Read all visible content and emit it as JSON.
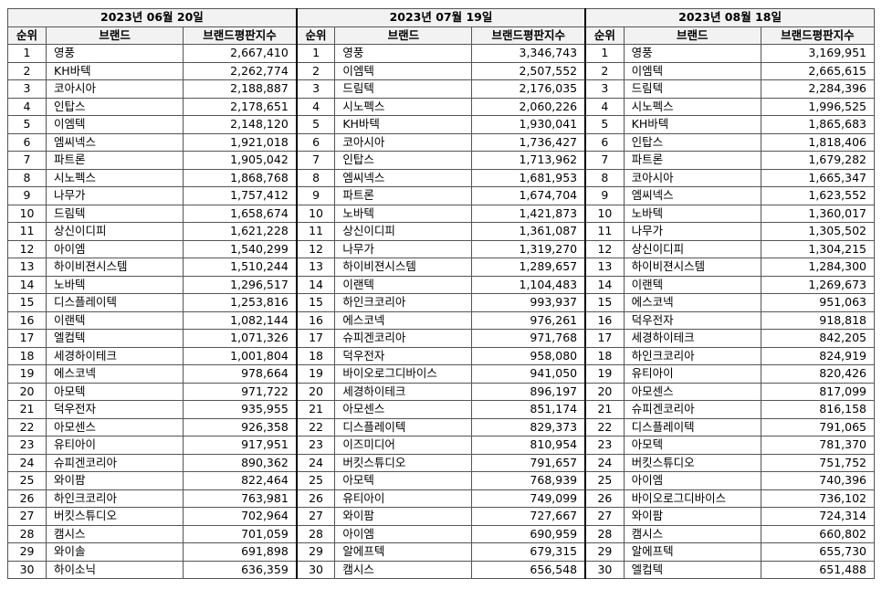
{
  "headers": {
    "rank": "순위",
    "brand": "브랜드",
    "index": "브랜드평판지수"
  },
  "periods": [
    {
      "date": "2023년 06월 20일",
      "rows": [
        [
          "1",
          "영풍",
          "2,667,410"
        ],
        [
          "2",
          "KH바텍",
          "2,262,774"
        ],
        [
          "3",
          "코아시아",
          "2,188,887"
        ],
        [
          "4",
          "인탑스",
          "2,178,651"
        ],
        [
          "5",
          "이엠텍",
          "2,148,120"
        ],
        [
          "6",
          "엠씨넥스",
          "1,921,018"
        ],
        [
          "7",
          "파트론",
          "1,905,042"
        ],
        [
          "8",
          "시노펙스",
          "1,868,768"
        ],
        [
          "9",
          "나무가",
          "1,757,412"
        ],
        [
          "10",
          "드림텍",
          "1,658,674"
        ],
        [
          "11",
          "상신이디피",
          "1,621,228"
        ],
        [
          "12",
          "아이엠",
          "1,540,299"
        ],
        [
          "13",
          "하이비젼시스템",
          "1,510,244"
        ],
        [
          "14",
          "노바텍",
          "1,296,517"
        ],
        [
          "15",
          "디스플레이텍",
          "1,253,816"
        ],
        [
          "16",
          "이랜텍",
          "1,082,144"
        ],
        [
          "17",
          "엘컴텍",
          "1,071,326"
        ],
        [
          "18",
          "세경하이테크",
          "1,001,804"
        ],
        [
          "19",
          "에스코넥",
          "978,664"
        ],
        [
          "20",
          "아모텍",
          "971,722"
        ],
        [
          "21",
          "덕우전자",
          "935,955"
        ],
        [
          "22",
          "아모센스",
          "926,358"
        ],
        [
          "23",
          "유티아이",
          "917,951"
        ],
        [
          "24",
          "슈피겐코리아",
          "890,362"
        ],
        [
          "25",
          "와이팜",
          "822,464"
        ],
        [
          "26",
          "하인크코리아",
          "763,981"
        ],
        [
          "27",
          "버킷스튜디오",
          "702,964"
        ],
        [
          "28",
          "캠시스",
          "701,059"
        ],
        [
          "29",
          "와이솔",
          "691,898"
        ],
        [
          "30",
          "하이소닉",
          "636,359"
        ]
      ]
    },
    {
      "date": "2023년 07월 19일",
      "rows": [
        [
          "1",
          "영풍",
          "3,346,743"
        ],
        [
          "2",
          "이엠텍",
          "2,507,552"
        ],
        [
          "3",
          "드림텍",
          "2,176,035"
        ],
        [
          "4",
          "시노펙스",
          "2,060,226"
        ],
        [
          "5",
          "KH바텍",
          "1,930,041"
        ],
        [
          "6",
          "코아시아",
          "1,736,427"
        ],
        [
          "7",
          "인탑스",
          "1,713,962"
        ],
        [
          "8",
          "엠씨넥스",
          "1,681,953"
        ],
        [
          "9",
          "파트론",
          "1,674,704"
        ],
        [
          "10",
          "노바텍",
          "1,421,873"
        ],
        [
          "11",
          "상신이디피",
          "1,361,087"
        ],
        [
          "12",
          "나무가",
          "1,319,270"
        ],
        [
          "13",
          "하이비젼시스템",
          "1,289,657"
        ],
        [
          "14",
          "이랜텍",
          "1,104,483"
        ],
        [
          "15",
          "하인크코리아",
          "993,937"
        ],
        [
          "16",
          "에스코넥",
          "976,261"
        ],
        [
          "17",
          "슈피겐코리아",
          "971,768"
        ],
        [
          "18",
          "덕우전자",
          "958,080"
        ],
        [
          "19",
          "바이오로그디바이스",
          "941,050"
        ],
        [
          "20",
          "세경하이테크",
          "896,197"
        ],
        [
          "21",
          "아모센스",
          "851,174"
        ],
        [
          "22",
          "디스플레이텍",
          "829,373"
        ],
        [
          "23",
          "이즈미디어",
          "810,954"
        ],
        [
          "24",
          "버킷스튜디오",
          "791,657"
        ],
        [
          "25",
          "아모텍",
          "768,939"
        ],
        [
          "26",
          "유티아이",
          "749,099"
        ],
        [
          "27",
          "와이팜",
          "727,667"
        ],
        [
          "28",
          "아이엠",
          "690,959"
        ],
        [
          "29",
          "알에프텍",
          "679,315"
        ],
        [
          "30",
          "캠시스",
          "656,548"
        ]
      ]
    },
    {
      "date": "2023년 08월 18일",
      "rows": [
        [
          "1",
          "영풍",
          "3,169,951"
        ],
        [
          "2",
          "이엠텍",
          "2,665,615"
        ],
        [
          "3",
          "드림텍",
          "2,284,396"
        ],
        [
          "4",
          "시노펙스",
          "1,996,525"
        ],
        [
          "5",
          "KH바텍",
          "1,865,683"
        ],
        [
          "6",
          "인탑스",
          "1,818,406"
        ],
        [
          "7",
          "파트론",
          "1,679,282"
        ],
        [
          "8",
          "코아시아",
          "1,665,347"
        ],
        [
          "9",
          "엠씨넥스",
          "1,623,552"
        ],
        [
          "10",
          "노바텍",
          "1,360,017"
        ],
        [
          "11",
          "나무가",
          "1,305,502"
        ],
        [
          "12",
          "상신이디피",
          "1,304,215"
        ],
        [
          "13",
          "하이비젼시스템",
          "1,284,300"
        ],
        [
          "14",
          "이랜텍",
          "1,269,673"
        ],
        [
          "15",
          "에스코넥",
          "951,063"
        ],
        [
          "16",
          "덕우전자",
          "918,818"
        ],
        [
          "17",
          "세경하이테크",
          "842,205"
        ],
        [
          "18",
          "하인크코리아",
          "824,919"
        ],
        [
          "19",
          "유티아이",
          "820,426"
        ],
        [
          "20",
          "아모센스",
          "817,099"
        ],
        [
          "21",
          "슈피겐코리아",
          "816,158"
        ],
        [
          "22",
          "디스플레이텍",
          "791,065"
        ],
        [
          "23",
          "아모텍",
          "781,370"
        ],
        [
          "24",
          "버킷스튜디오",
          "751,752"
        ],
        [
          "25",
          "아이엠",
          "740,396"
        ],
        [
          "26",
          "바이오로그디바이스",
          "736,102"
        ],
        [
          "27",
          "와이팜",
          "724,314"
        ],
        [
          "28",
          "캠시스",
          "660,802"
        ],
        [
          "29",
          "알에프텍",
          "655,730"
        ],
        [
          "30",
          "엘컴텍",
          "651,488"
        ]
      ]
    }
  ]
}
